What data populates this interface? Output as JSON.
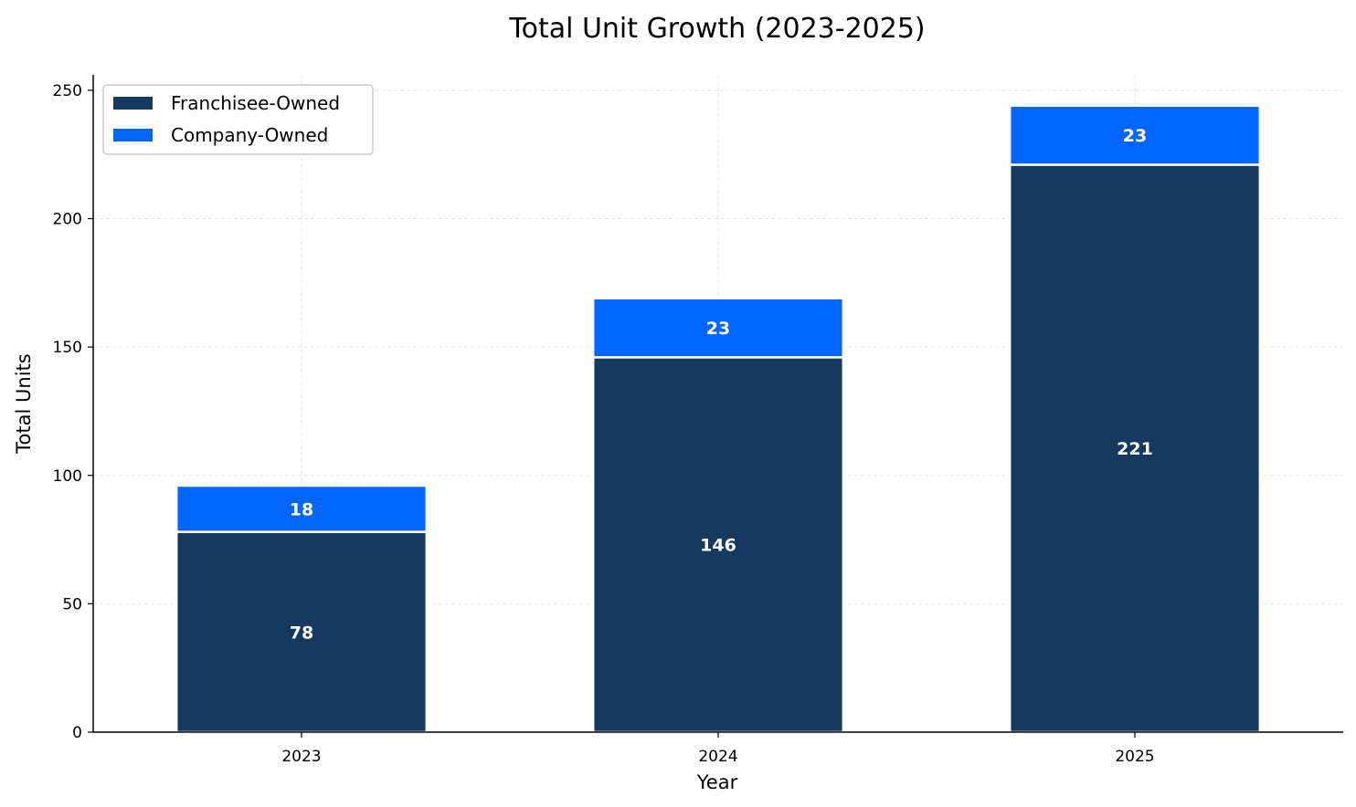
{
  "chart_data": {
    "type": "bar",
    "stacked": true,
    "title": "Total Unit Growth (2023-2025)",
    "xlabel": "Year",
    "ylabel": "Total Units",
    "categories": [
      "2023",
      "2024",
      "2025"
    ],
    "series": [
      {
        "name": "Franchisee-Owned",
        "values": [
          78,
          146,
          221
        ],
        "color": "#15395f"
      },
      {
        "name": "Company-Owned",
        "values": [
          18,
          23,
          23
        ],
        "color": "#0066ff"
      }
    ],
    "ylim": [
      0,
      256
    ],
    "yticks": [
      0,
      50,
      100,
      150,
      200,
      250
    ],
    "grid": true,
    "legend_position": "top-left"
  }
}
